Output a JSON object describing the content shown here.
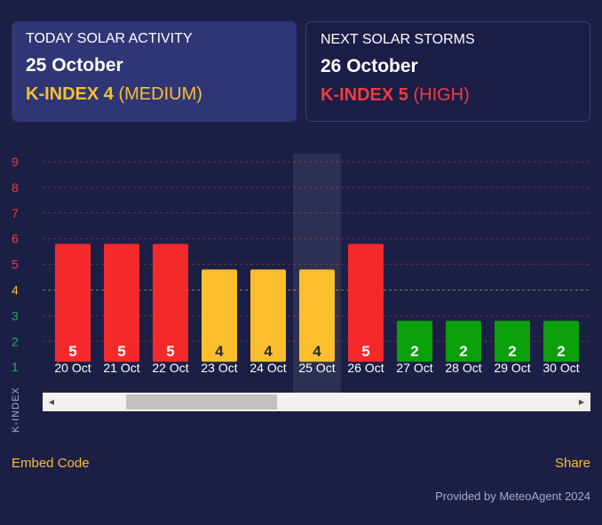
{
  "today": {
    "heading": "TODAY SOLAR ACTIVITY",
    "date": "25 October",
    "kindex_label": "K-INDEX 4",
    "level": "(MEDIUM)",
    "color": "#fbbf2e"
  },
  "next": {
    "heading": "NEXT SOLAR STORMS",
    "date": "26 October",
    "kindex_label": "K-INDEX 5",
    "level": "(HIGH)",
    "color": "#f23a3a"
  },
  "chart_data": {
    "type": "bar",
    "ylabel": "K-INDEX",
    "ylim": [
      1,
      9
    ],
    "yticks": [
      1,
      2,
      3,
      4,
      5,
      6,
      7,
      8,
      9
    ],
    "categories": [
      "20 Oct",
      "21 Oct",
      "22 Oct",
      "23 Oct",
      "24 Oct",
      "25 Oct",
      "26 Oct",
      "27 Oct",
      "28 Oct",
      "29 Oct",
      "30 Oct"
    ],
    "values": [
      5,
      5,
      5,
      4,
      4,
      4,
      5,
      2,
      2,
      2,
      2
    ],
    "highlighted_category": "25 Oct",
    "colors": {
      "high": "#f42a2a",
      "medium": "#fbbf2e",
      "low": "#0c9f0c",
      "tick_low": "#22b04a",
      "tick_medium": "#fbbf2e",
      "tick_high": "#f23a3a"
    }
  },
  "footer": {
    "embed_label": "Embed Code",
    "share_label": "Share",
    "credit": "Provided by MeteoAgent 2024"
  },
  "scrollbar": {
    "left_arrow_icon": "triangle-left-icon",
    "right_arrow_icon": "triangle-right-icon"
  }
}
